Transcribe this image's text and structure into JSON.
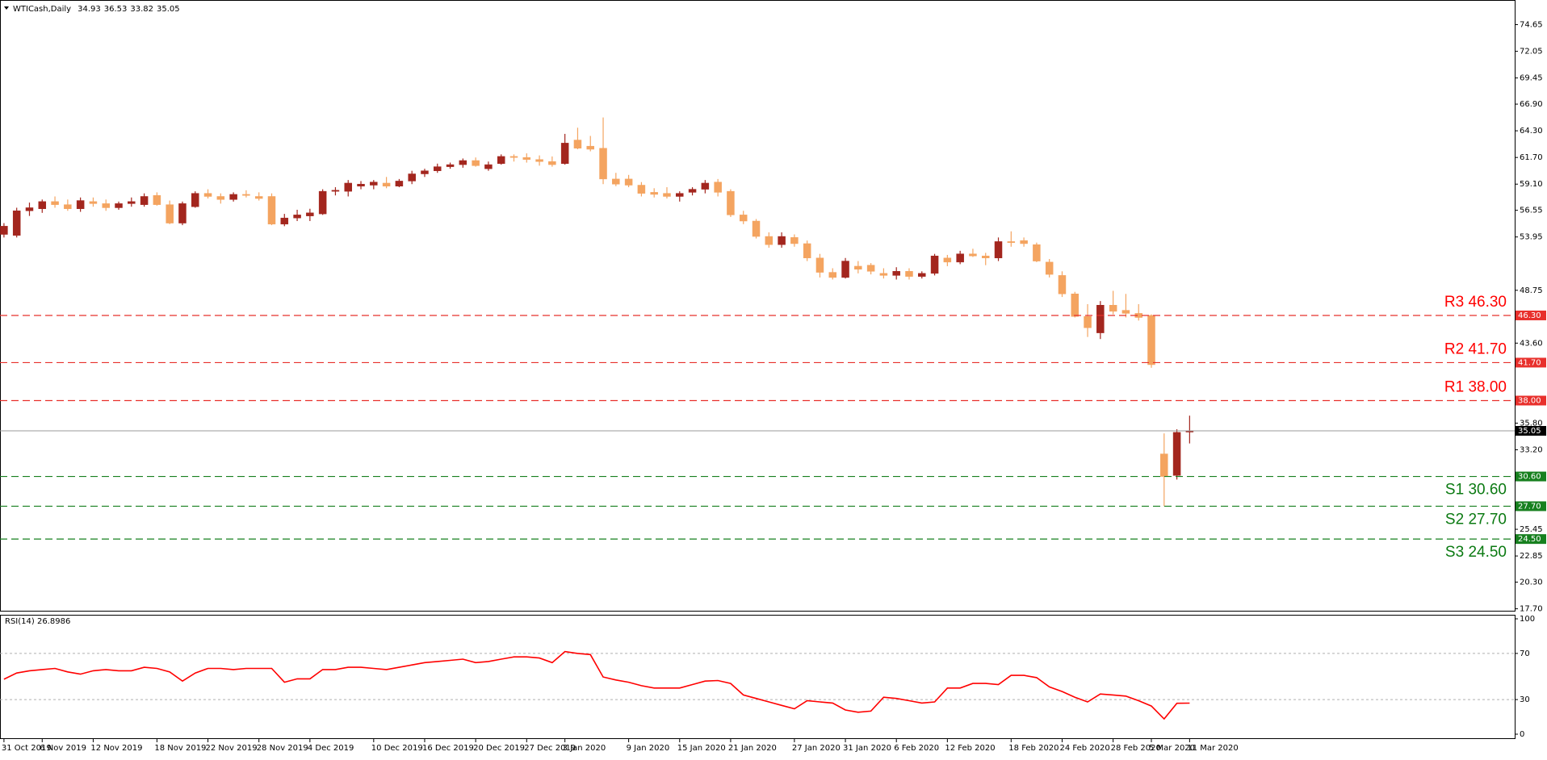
{
  "chart_data": [
    {
      "type": "candlestick",
      "title": "WTICash,Daily",
      "categories": [
        "31 Oct 2019",
        null,
        null,
        "6 Nov 2019",
        null,
        null,
        null,
        "12 Nov 2019",
        null,
        null,
        null,
        null,
        "18 Nov 2019",
        null,
        null,
        null,
        "22 Nov 2019",
        null,
        null,
        null,
        "28 Nov 2019",
        null,
        null,
        null,
        "4 Dec 2019",
        null,
        null,
        null,
        null,
        "10 Dec 2019",
        null,
        null,
        null,
        "16 Dec 2019",
        null,
        null,
        null,
        "20 Dec 2019",
        null,
        null,
        null,
        "27 Dec 2019",
        null,
        null,
        "3 Jan 2020",
        null,
        null,
        null,
        null,
        "9 Jan 2020",
        null,
        null,
        null,
        "15 Jan 2020",
        null,
        null,
        null,
        "21 Jan 2020",
        null,
        null,
        null,
        null,
        "27 Jan 2020",
        null,
        null,
        null,
        "31 Jan 2020",
        null,
        null,
        null,
        "6 Feb 2020",
        null,
        null,
        null,
        "12 Feb 2020",
        null,
        null,
        null,
        null,
        "18 Feb 2020",
        null,
        null,
        null,
        "24 Feb 2020",
        null,
        null,
        null,
        "28 Feb 2020",
        null,
        null,
        "5 Mar 2020",
        null,
        null,
        "11 Mar 2020"
      ],
      "ohlc": [
        [
          54.2,
          55.3,
          53.9,
          55.0
        ],
        [
          54.1,
          56.8,
          53.9,
          56.5
        ],
        [
          56.5,
          57.3,
          56.0,
          56.8
        ],
        [
          56.7,
          57.6,
          56.3,
          57.4
        ],
        [
          57.4,
          57.9,
          56.8,
          57.1
        ],
        [
          57.1,
          57.6,
          56.5,
          56.7
        ],
        [
          56.7,
          57.8,
          56.4,
          57.5
        ],
        [
          57.4,
          57.8,
          56.9,
          57.2
        ],
        [
          57.2,
          57.6,
          56.5,
          56.8
        ],
        [
          56.8,
          57.4,
          56.6,
          57.2
        ],
        [
          57.2,
          57.8,
          56.9,
          57.4
        ],
        [
          57.1,
          58.2,
          56.9,
          57.9
        ],
        [
          58.0,
          58.3,
          57.0,
          57.1
        ],
        [
          57.1,
          57.5,
          55.2,
          55.3
        ],
        [
          55.3,
          57.4,
          55.1,
          57.2
        ],
        [
          56.9,
          58.4,
          56.8,
          58.2
        ],
        [
          58.2,
          58.6,
          57.7,
          57.9
        ],
        [
          57.9,
          58.2,
          57.2,
          57.6
        ],
        [
          57.6,
          58.3,
          57.4,
          58.1
        ],
        [
          58.1,
          58.5,
          57.8,
          58.0
        ],
        [
          57.9,
          58.3,
          57.5,
          57.7
        ],
        [
          57.9,
          58.2,
          55.1,
          55.2
        ],
        [
          55.2,
          56.2,
          55.0,
          55.8
        ],
        [
          55.8,
          56.6,
          55.5,
          56.1
        ],
        [
          56.0,
          56.7,
          55.5,
          56.3
        ],
        [
          56.2,
          58.6,
          56.1,
          58.4
        ],
        [
          58.4,
          58.8,
          58.0,
          58.5
        ],
        [
          58.4,
          59.5,
          57.9,
          59.2
        ],
        [
          58.9,
          59.4,
          58.6,
          59.1
        ],
        [
          59.0,
          59.5,
          58.6,
          59.3
        ],
        [
          59.2,
          59.8,
          58.7,
          58.9
        ],
        [
          58.9,
          59.6,
          58.8,
          59.4
        ],
        [
          59.4,
          60.4,
          59.1,
          60.1
        ],
        [
          60.1,
          60.6,
          59.8,
          60.4
        ],
        [
          60.4,
          61.1,
          60.2,
          60.8
        ],
        [
          60.8,
          61.2,
          60.6,
          61.0
        ],
        [
          61.0,
          61.6,
          60.7,
          61.4
        ],
        [
          61.4,
          61.7,
          60.8,
          60.9
        ],
        [
          60.6,
          61.3,
          60.4,
          61.0
        ],
        [
          61.1,
          62.0,
          61.0,
          61.8
        ],
        [
          61.8,
          62.0,
          61.3,
          61.7
        ],
        [
          61.7,
          62.1,
          61.2,
          61.5
        ],
        [
          61.5,
          61.9,
          60.9,
          61.3
        ],
        [
          61.3,
          61.8,
          60.8,
          61.0
        ],
        [
          61.1,
          64.0,
          61.0,
          63.1
        ],
        [
          63.4,
          64.6,
          62.5,
          62.6
        ],
        [
          62.8,
          63.8,
          62.3,
          62.5
        ],
        [
          62.6,
          65.6,
          59.1,
          59.6
        ],
        [
          59.6,
          60.2,
          58.9,
          59.1
        ],
        [
          59.6,
          60.0,
          58.8,
          59.0
        ],
        [
          59.0,
          59.3,
          57.9,
          58.2
        ],
        [
          58.3,
          58.7,
          57.8,
          58.1
        ],
        [
          58.2,
          58.8,
          57.7,
          57.9
        ],
        [
          57.9,
          58.4,
          57.4,
          58.2
        ],
        [
          58.3,
          58.8,
          58.0,
          58.6
        ],
        [
          58.6,
          59.5,
          58.2,
          59.2
        ],
        [
          59.3,
          59.6,
          57.9,
          58.3
        ],
        [
          58.4,
          58.6,
          55.9,
          56.1
        ],
        [
          56.1,
          56.5,
          55.2,
          55.5
        ],
        [
          55.5,
          55.7,
          53.8,
          54.0
        ],
        [
          54.0,
          54.4,
          52.9,
          53.2
        ],
        [
          53.2,
          54.4,
          52.9,
          54.0
        ],
        [
          53.9,
          54.2,
          53.0,
          53.3
        ],
        [
          53.3,
          53.6,
          51.6,
          51.9
        ],
        [
          51.9,
          52.3,
          50.0,
          50.5
        ],
        [
          50.5,
          50.9,
          49.8,
          50.0
        ],
        [
          50.0,
          51.9,
          49.9,
          51.6
        ],
        [
          51.1,
          51.6,
          50.4,
          50.8
        ],
        [
          51.2,
          51.4,
          50.3,
          50.6
        ],
        [
          50.4,
          50.9,
          49.9,
          50.2
        ],
        [
          50.2,
          51.0,
          49.8,
          50.6
        ],
        [
          50.6,
          50.9,
          49.8,
          50.1
        ],
        [
          50.1,
          50.6,
          49.9,
          50.4
        ],
        [
          50.4,
          52.3,
          50.2,
          52.1
        ],
        [
          51.9,
          52.2,
          51.1,
          51.5
        ],
        [
          51.5,
          52.6,
          51.3,
          52.3
        ],
        [
          52.3,
          52.8,
          52.0,
          52.1
        ],
        [
          52.1,
          52.4,
          51.2,
          51.9
        ],
        [
          51.9,
          53.9,
          51.6,
          53.5
        ],
        [
          53.5,
          54.5,
          53.0,
          53.4
        ],
        [
          53.6,
          53.9,
          53.0,
          53.3
        ],
        [
          53.2,
          53.4,
          51.5,
          51.6
        ],
        [
          51.5,
          51.8,
          50.0,
          50.3
        ],
        [
          50.2,
          50.6,
          48.1,
          48.4
        ],
        [
          48.4,
          48.6,
          46.1,
          46.2
        ],
        [
          46.2,
          47.4,
          44.2,
          45.1
        ],
        [
          44.6,
          47.7,
          44.0,
          47.3
        ],
        [
          47.3,
          48.7,
          46.4,
          46.7
        ],
        [
          46.8,
          48.4,
          46.1,
          46.5
        ],
        [
          46.5,
          47.4,
          45.8,
          46.1
        ],
        [
          46.3,
          46.4,
          41.2,
          41.5
        ],
        [
          32.8,
          34.8,
          27.7,
          30.6
        ],
        [
          30.7,
          35.2,
          30.3,
          34.9
        ],
        [
          34.93,
          36.53,
          33.82,
          35.05
        ]
      ],
      "up_color": "#a3261e",
      "down_color": "#f4a460",
      "ylim": [
        17.51,
        76.76
      ],
      "yticks": [
        74.65,
        72.05,
        69.45,
        {
          "value": 66.9,
          "label": "66.90"
        },
        {
          "value": 64.3,
          "label": "64.30"
        },
        {
          "value": 61.7,
          "label": "61.70"
        },
        {
          "value": 59.1,
          "label": "59.10"
        },
        56.55,
        53.95,
        48.75,
        {
          "value": 43.6,
          "label": "43.60"
        },
        {
          "value": 35.8,
          "label": "35.80"
        },
        {
          "value": 33.2,
          "label": "33.20"
        },
        25.45,
        22.85,
        {
          "value": 20.3,
          "label": "20.30"
        },
        {
          "value": 17.7,
          "label": "17.70"
        }
      ],
      "levels": [
        {
          "label": "R3 46.30",
          "value": 46.3,
          "tag": "46.30",
          "color": "#e8302c",
          "side": "above"
        },
        {
          "label": "R2 41.70",
          "value": 41.7,
          "tag": "41.70",
          "color": "#e8302c",
          "side": "above"
        },
        {
          "label": "R1 38.00",
          "value": 38.0,
          "tag": "38.00",
          "color": "#e8302c",
          "side": "above"
        },
        {
          "label": "S1 30.60",
          "value": 30.6,
          "tag": "30.60",
          "color": "#17801f",
          "side": "below"
        },
        {
          "label": "S2 27.70",
          "value": 27.7,
          "tag": "27.70",
          "color": "#17801f",
          "side": "below"
        },
        {
          "label": "S3 24.50",
          "value": 24.5,
          "tag": "24.50",
          "color": "#17801f",
          "side": "below"
        }
      ]
    },
    {
      "type": "line",
      "title": "RSI(14) 26.8986",
      "color": "#ff0000",
      "values": [
        47.6,
        53,
        55,
        56,
        57,
        54,
        52,
        55,
        56,
        55,
        55,
        58,
        57,
        54,
        46,
        53,
        57,
        57,
        56,
        57,
        57,
        57,
        45,
        48,
        48,
        56,
        56,
        58,
        58,
        57,
        56,
        58,
        60,
        62,
        63,
        64,
        65,
        62,
        63,
        65,
        67,
        67,
        66,
        62,
        71.6,
        70,
        69,
        49.6,
        47,
        45,
        42,
        40,
        40,
        40,
        43,
        46,
        46.5,
        44,
        34,
        31,
        28,
        25,
        22,
        29,
        28,
        27,
        21,
        19,
        20,
        32,
        31,
        29,
        27,
        28,
        40,
        40,
        44,
        44,
        43,
        51,
        51,
        49,
        41,
        37,
        32,
        28,
        34.8,
        34,
        33,
        29,
        24.4,
        13.2,
        26.8,
        26.8986
      ],
      "ylim": [
        0,
        100
      ],
      "yticks": [
        100,
        70,
        30,
        0
      ],
      "levels": [
        70,
        30
      ]
    }
  ]
}
